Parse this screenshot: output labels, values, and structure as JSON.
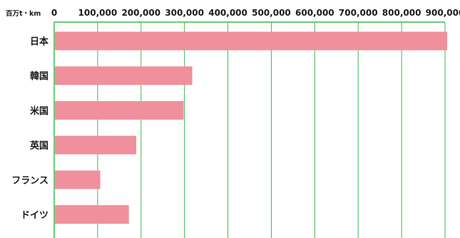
{
  "chart_data": {
    "type": "bar",
    "orientation": "horizontal",
    "unit_label": "百万t・km",
    "categories": [
      "日本",
      "韓国",
      "米国",
      "英国",
      "フランス",
      "ドイツ"
    ],
    "values": [
      905000,
      318000,
      298000,
      189000,
      106000,
      172000
    ],
    "xlim": [
      0,
      900000
    ],
    "x_ticks": [
      0,
      100000,
      200000,
      300000,
      400000,
      500000,
      600000,
      700000,
      800000,
      900000
    ],
    "x_tick_labels": [
      "0",
      "100,000",
      "200,000",
      "300,000",
      "400,000",
      "500,000",
      "600,000",
      "700,000",
      "800,000",
      "900,000"
    ],
    "grid": true,
    "legend": "none",
    "bar_color": "#f0909c",
    "grid_color": "#3dbb4b",
    "axis_color": "#3dbb4b",
    "tick_label_position": "top"
  }
}
